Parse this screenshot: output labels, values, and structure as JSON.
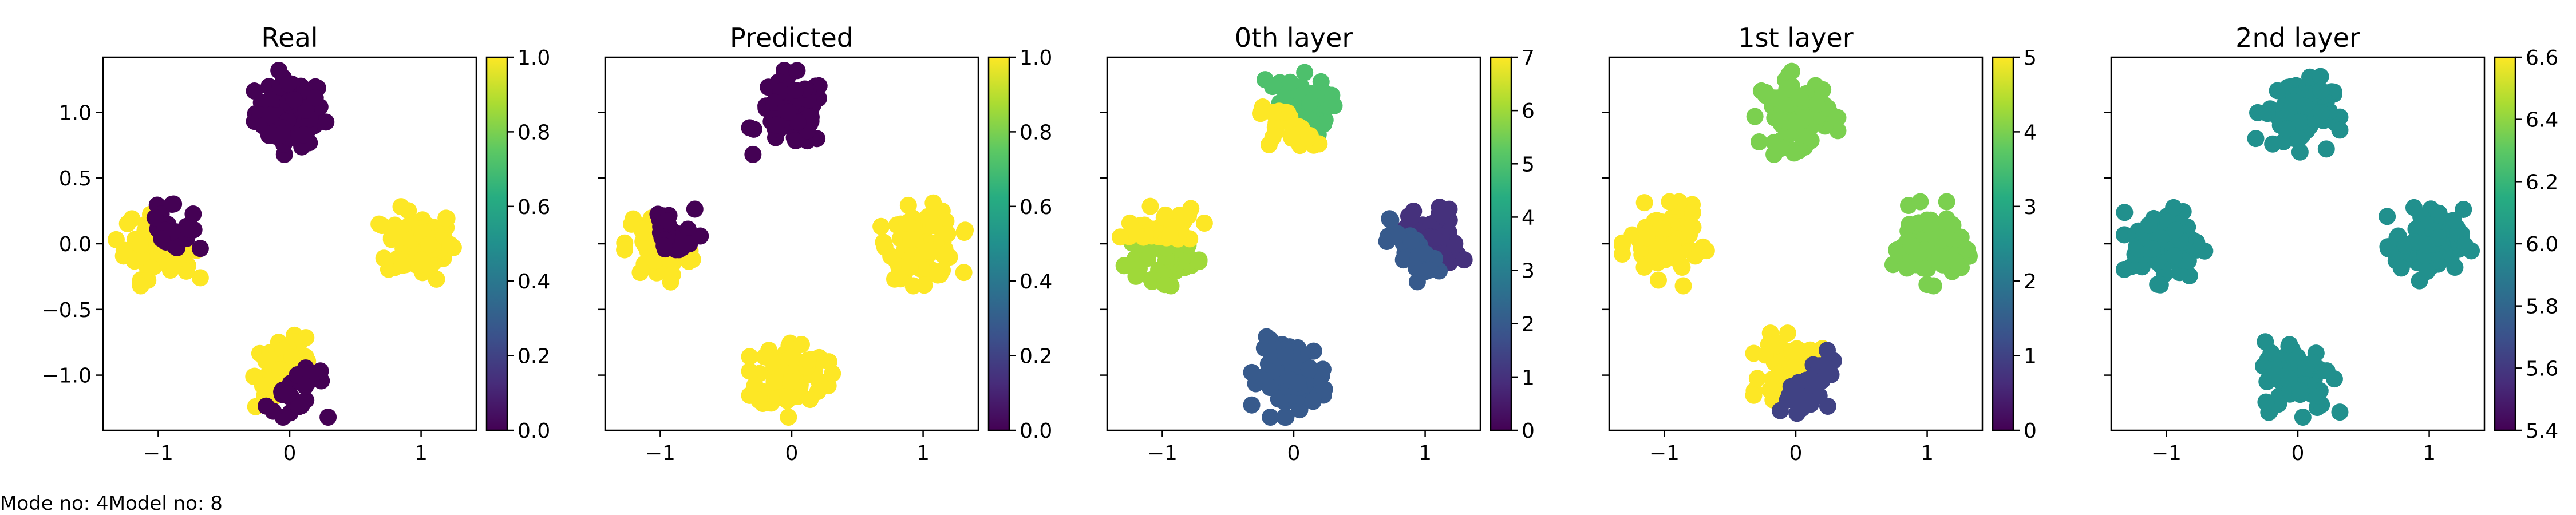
{
  "caption": "Mode no: 4Model no: 8",
  "colormap": "viridis",
  "viridis_stops": [
    "#440154",
    "#472c7a",
    "#3b518b",
    "#2c718e",
    "#21908d",
    "#27ad81",
    "#5cc863",
    "#aadc32",
    "#fde725"
  ],
  "chart_data": [
    {
      "type": "scatter",
      "title": "Real",
      "xlim": [
        -1.42,
        1.42
      ],
      "ylim": [
        -1.42,
        1.42
      ],
      "xticks": [
        -1,
        0,
        1
      ],
      "xticklabels": [
        "−1",
        "0",
        "1"
      ],
      "yticks": [
        -1.0,
        -0.5,
        0.0,
        0.5,
        1.0
      ],
      "yticklabels": [
        "−1.0",
        "−0.5",
        "0.0",
        "0.5",
        "1.0"
      ],
      "colorbar": {
        "min": 0.0,
        "max": 1.0,
        "ticks": [
          0.0,
          0.2,
          0.4,
          0.6,
          0.8,
          1.0
        ],
        "ticklabels": [
          "0.0",
          "0.2",
          "0.4",
          "0.6",
          "0.8",
          "1.0"
        ]
      },
      "clusters": [
        {
          "cx": 0,
          "cy": 1,
          "value": 0.0
        },
        {
          "cx": 1,
          "cy": 0,
          "value": 1.0
        },
        {
          "cx": -1,
          "cy": 0,
          "value": 1.0,
          "secondary": {
            "value": 0.0,
            "region": "upper-right"
          }
        },
        {
          "cx": 0,
          "cy": -1,
          "value": 1.0,
          "secondary": {
            "value": 0.0,
            "region": "lower-right"
          }
        }
      ]
    },
    {
      "type": "scatter",
      "title": "Predicted",
      "xlim": [
        -1.42,
        1.42
      ],
      "ylim": [
        -1.42,
        1.42
      ],
      "xticks": [
        -1,
        0,
        1
      ],
      "xticklabels": [
        "−1",
        "0",
        "1"
      ],
      "yticks": [
        -1.0,
        -0.5,
        0.0,
        0.5,
        1.0
      ],
      "yticklabels": [],
      "colorbar": {
        "min": 0.0,
        "max": 1.0,
        "ticks": [
          0.0,
          0.2,
          0.4,
          0.6,
          0.8,
          1.0
        ],
        "ticklabels": [
          "0.0",
          "0.2",
          "0.4",
          "0.6",
          "0.8",
          "1.0"
        ]
      },
      "clusters": [
        {
          "cx": 0,
          "cy": 1,
          "value": 0.0
        },
        {
          "cx": 1,
          "cy": 0,
          "value": 1.0
        },
        {
          "cx": -1,
          "cy": 0,
          "value": 1.0,
          "secondary": {
            "value": 0.0,
            "region": "upper-right"
          }
        },
        {
          "cx": 0,
          "cy": -1,
          "value": 1.0
        }
      ]
    },
    {
      "type": "scatter",
      "title": "0th layer",
      "xlim": [
        -1.42,
        1.42
      ],
      "ylim": [
        -1.42,
        1.42
      ],
      "xticks": [
        -1,
        0,
        1
      ],
      "xticklabels": [
        "−1",
        "0",
        "1"
      ],
      "yticks": [
        -1.0,
        -0.5,
        0.0,
        0.5,
        1.0
      ],
      "yticklabels": [],
      "colorbar": {
        "min": 0,
        "max": 7,
        "ticks": [
          0,
          1,
          2,
          3,
          4,
          5,
          6,
          7
        ],
        "ticklabels": [
          "0",
          "1",
          "2",
          "3",
          "4",
          "5",
          "6",
          "7"
        ]
      },
      "clusters": [
        {
          "cx": 0,
          "cy": 1,
          "value": 5,
          "secondary": {
            "value": 7,
            "region": "lower-left"
          }
        },
        {
          "cx": 1,
          "cy": 0,
          "value": 1,
          "secondary": {
            "value": 2,
            "region": "lower-left"
          }
        },
        {
          "cx": -1,
          "cy": 0,
          "value": 6,
          "secondary": {
            "value": 7,
            "region": "upper"
          }
        },
        {
          "cx": 0,
          "cy": -1,
          "value": 2
        }
      ]
    },
    {
      "type": "scatter",
      "title": "1st layer",
      "xlim": [
        -1.42,
        1.42
      ],
      "ylim": [
        -1.42,
        1.42
      ],
      "xticks": [
        -1,
        0,
        1
      ],
      "xticklabels": [
        "−1",
        "0",
        "1"
      ],
      "yticks": [
        -1.0,
        -0.5,
        0.0,
        0.5,
        1.0
      ],
      "yticklabels": [],
      "colorbar": {
        "min": 0,
        "max": 5,
        "ticks": [
          0,
          1,
          2,
          3,
          4,
          5
        ],
        "ticklabels": [
          "0",
          "1",
          "2",
          "3",
          "4",
          "5"
        ]
      },
      "clusters": [
        {
          "cx": 0,
          "cy": 1,
          "value": 4
        },
        {
          "cx": 1,
          "cy": 0,
          "value": 4
        },
        {
          "cx": -1,
          "cy": 0,
          "value": 5
        },
        {
          "cx": 0,
          "cy": -1,
          "value": 5,
          "secondary": {
            "value": 1,
            "region": "lower-right"
          }
        }
      ]
    },
    {
      "type": "scatter",
      "title": "2nd layer",
      "xlim": [
        -1.42,
        1.42
      ],
      "ylim": [
        -1.42,
        1.42
      ],
      "xticks": [
        -1,
        0,
        1
      ],
      "xticklabels": [
        "−1",
        "0",
        "1"
      ],
      "yticks": [
        -1.0,
        -0.5,
        0.0,
        0.5,
        1.0
      ],
      "yticklabels": [],
      "colorbar": {
        "min": 5.4,
        "max": 6.6,
        "ticks": [
          5.4,
          5.6,
          5.8,
          6.0,
          6.2,
          6.4,
          6.6
        ],
        "ticklabels": [
          "5.4",
          "5.6",
          "5.8",
          "6.0",
          "6.2",
          "6.4",
          "6.6"
        ]
      },
      "clusters": [
        {
          "cx": 0,
          "cy": 1,
          "value": 6.0
        },
        {
          "cx": 1,
          "cy": 0,
          "value": 6.0
        },
        {
          "cx": -1,
          "cy": 0,
          "value": 6.0
        },
        {
          "cx": 0,
          "cy": -1,
          "value": 6.0
        }
      ]
    }
  ]
}
